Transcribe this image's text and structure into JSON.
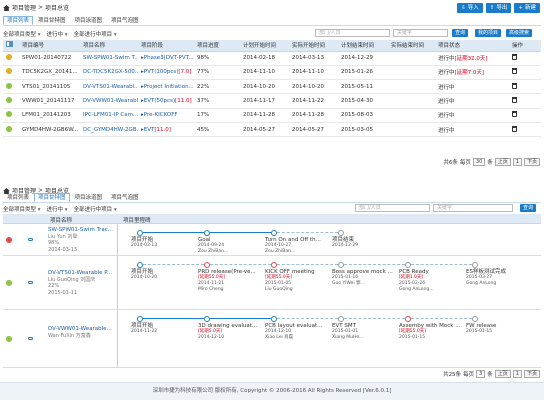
{
  "top": {
    "breadcrumb": [
      "项目管理",
      "项目总览"
    ],
    "buttons": [
      "导入",
      "导出",
      "新建"
    ],
    "tabs": [
      "项目列表",
      "项目甘特图",
      "项目泳道图",
      "项目气泡图"
    ],
    "filters": [
      "全部项目类型",
      "进行中",
      "全部进行中项目"
    ],
    "search_placeholder": "部门/人员",
    "keyword_placeholder": "关键字",
    "search_btn": "查询",
    "adv_btns": [
      "我的项目",
      "高级搜索"
    ],
    "columns": [
      "",
      "项目编号",
      "项目名称",
      "项目阶段",
      "项目进度",
      "计划开始时间",
      "实际开始时间",
      "计划结束时间",
      "实际结束时间",
      "项目状态",
      "操作"
    ],
    "rows": [
      {
        "status": "#e0b020",
        "code": "SPW01-20140722",
        "name": "SW-SPW01-Swim T...",
        "stage": "Phase3(DVT-PVT...",
        "stage_extra": "",
        "progress": "98%",
        "ps": "2014-02-18",
        "as": "2014-03-13",
        "pe": "2014-12-29",
        "ae": "",
        "state": "进行中",
        "late": "[延期32.0天]"
      },
      {
        "status": "#e0b020",
        "code": "TDC5K2GX_20141...",
        "name": "DC-TDC5K2GX-500...",
        "stage": "PVT(100pcs)",
        "stage_extra": "[7.0]",
        "progress": "77%",
        "ps": "2014-11-10",
        "as": "2014-11-10",
        "pe": "2015-01-26",
        "ae": "",
        "state": "进行中",
        "late": "[延期7.0天]"
      },
      {
        "status": "#8bc53f",
        "code": "VTS01_20141105",
        "name": "DV-VTS01-Wearabl...",
        "stage": "Project Initiation...",
        "stage_extra": "",
        "progress": "22%",
        "ps": "2014-10-20",
        "as": "2014-10-20",
        "pe": "2015-05-11",
        "ae": "",
        "state": "进行中",
        "late": ""
      },
      {
        "status": "#8bc53f",
        "code": "VWW01_20141117",
        "name": "DV-VWW01-Wearabl...",
        "stage": "EVT(50pcs)",
        "stage_extra": "[11.0]",
        "progress": "37%",
        "ps": "2014-11-17",
        "as": "2014-11-22",
        "pe": "2015-04-30",
        "ae": "",
        "state": "进行中",
        "late": ""
      },
      {
        "status": "#8bc53f",
        "code": "LFM01_20141203",
        "name": "IPC-LFM01-IP Cam...",
        "stage": "Pre-KICKOFF",
        "stage_extra": "",
        "progress": "17%",
        "ps": "2014-11-28",
        "as": "2014-11-28",
        "pe": "2015-08-03",
        "ae": "",
        "state": "进行中",
        "late": ""
      },
      {
        "status": "#8bc53f",
        "code": "GYMD4HW-2GB6W...",
        "name": "DC_GYMD4HW-2GB...",
        "stage": "EVT",
        "stage_extra": "[11.0]",
        "progress": "45%",
        "ps": "2014-05-27",
        "as": "2014-05-27",
        "pe": "2015-03-05",
        "ae": "",
        "state": "进行中",
        "late": ""
      }
    ],
    "pager": {
      "total": "共6条",
      "per": "每页",
      "size": "30",
      "unit": "条",
      "prev": "上页",
      "page": "1",
      "next": "下页"
    }
  },
  "bottom": {
    "breadcrumb": [
      "项目管理",
      "项目总览"
    ],
    "tabs": [
      "项目列表",
      "项目甘特图",
      "项目泳道图",
      "项目气泡图"
    ],
    "filters": [
      "全部项目类型",
      "进行中",
      "全部进行中项目"
    ],
    "search_placeholder": "部门/人员",
    "keyword_placeholder": "关键字",
    "search_btn": "查询",
    "columns": [
      "项目名称",
      "项目里程碑"
    ],
    "projects": [
      {
        "status": "#e24a4a",
        "name": "SW-SPW01-Swim Trac...",
        "owner": "Liu Yun 刘晕",
        "pct": "98%",
        "date": "2014-03-13",
        "milestones": [
          {
            "title": "项目开始",
            "date": "2014-03-13",
            "person": "",
            "tag": "",
            "state": "done"
          },
          {
            "title": "Goal",
            "date": "2014-09-24",
            "person": "Zou ZhiBan...",
            "tag": "",
            "state": "done"
          },
          {
            "title": "Turn On and Off th...",
            "date": "2014-10-27",
            "person": "Zou ZhiBan...",
            "tag": "",
            "state": "done"
          },
          {
            "title": "项目结束",
            "date": "2014-12-29",
            "person": "",
            "tag": "",
            "state": "open"
          }
        ]
      },
      {
        "status": "#8bc53f",
        "name": "DV-VTS01-Wearable P...",
        "owner": "Liu GuoQing 刘国庆",
        "pct": "22%",
        "date": "2015-01-11",
        "milestones": [
          {
            "title": "项目开始",
            "date": "2014-10-20",
            "person": "",
            "tag": "",
            "state": "done"
          },
          {
            "title": "PRD release(Pre-ve...",
            "date": "2014-11-21",
            "person": "Miro Cheng",
            "tag": "[延期55.0天]",
            "state": "late"
          },
          {
            "title": "KICK OFF meeting",
            "date": "2015-01-05",
            "person": "Liu GuoQing",
            "tag": "[延期55.0天]",
            "state": "late"
          },
          {
            "title": "Boss approve mock ...",
            "date": "2015-01-16",
            "person": "Guo YiWei 郭...",
            "tag": "",
            "state": "open"
          },
          {
            "title": "PCB Ready",
            "date": "2015-02-26",
            "person": "Gong AnLong...",
            "tag": "[延期1.0天]",
            "state": "open"
          },
          {
            "title": "ES样板测试完成",
            "date": "2015-03-27",
            "person": "Gong AnLong",
            "tag": "",
            "state": "open"
          }
        ]
      },
      {
        "status": "#8bc53f",
        "name": "DV-VWW01-Wearable...",
        "owner": "Wan FuXin 万富鑫",
        "pct": "",
        "date": "",
        "milestones": [
          {
            "title": "项目开始",
            "date": "2014-11-22",
            "person": "",
            "tag": "",
            "state": "done"
          },
          {
            "title": "3D drawing evaluat...",
            "date": "2014-12-10",
            "person": "",
            "tag": "[延期5.0天]",
            "state": "done"
          },
          {
            "title": "PCB layout evaluat...",
            "date": "2014-12-10",
            "person": "Xiao Lei 肖磊",
            "tag": "",
            "state": "done"
          },
          {
            "title": "EVT SMT",
            "date": "2015-01-01",
            "person": "Xiang MuHe...",
            "tag": "",
            "state": "open"
          },
          {
            "title": "Assemby with Mock ...",
            "date": "2015-01-15",
            "person": "",
            "tag": "[延期55.0天]",
            "state": "late"
          },
          {
            "title": "FW release",
            "date": "2015-01-15",
            "person": "",
            "tag": "",
            "state": "open"
          }
        ]
      }
    ],
    "pager": {
      "total": "共25条",
      "per": "每页",
      "size": "3",
      "unit": "条",
      "prev": "上页",
      "page": "1",
      "next": "下页"
    }
  },
  "footer": "深圳市捷为科技有限公司 版权所有, Copyright © 2006-2016 All Rights Reserved  [Ver.6.0.1]"
}
